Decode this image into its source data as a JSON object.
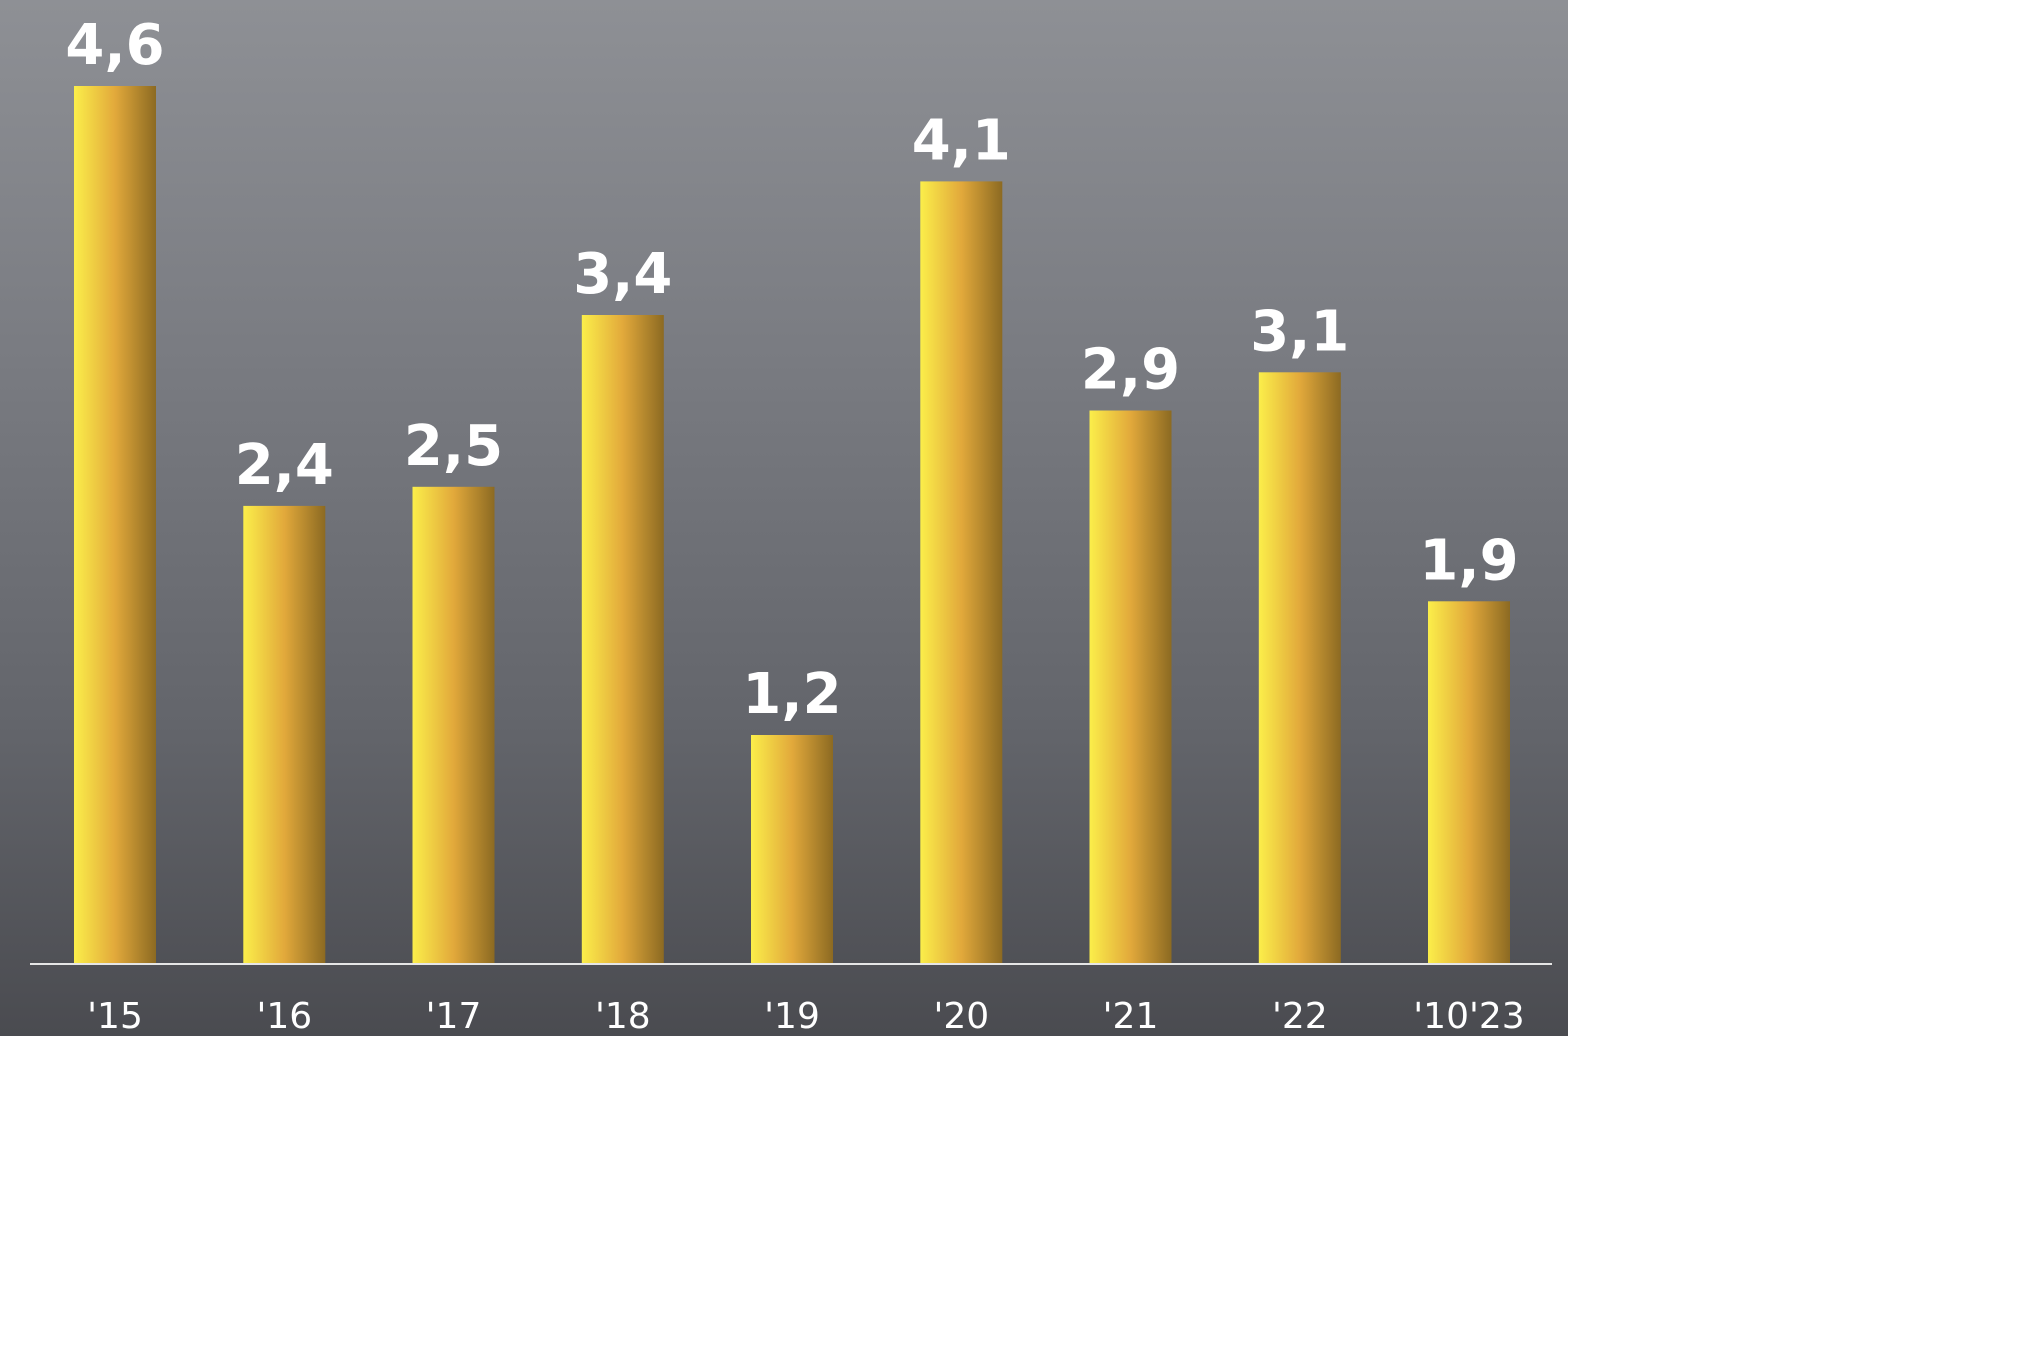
{
  "chart_data": {
    "type": "bar",
    "categories": [
      "'15",
      "'16",
      "'17",
      "'18",
      "'19",
      "'20",
      "'21",
      "'22",
      "'10'23"
    ],
    "values": [
      4.6,
      2.4,
      2.5,
      3.4,
      1.2,
      4.1,
      2.9,
      3.1,
      1.9
    ],
    "value_labels": [
      "4,6",
      "2,4",
      "2,5",
      "3,4",
      "1,2",
      "4,1",
      "2,9",
      "3,1",
      "1,9"
    ],
    "ylim": [
      0,
      4.6
    ],
    "grid": false,
    "legend": "none",
    "colors": {
      "bar_light": "#fbee4a",
      "bar_mid": "#e2a93b",
      "bar_dark": "#8c6a22",
      "text": "#ffffff",
      "baseline": "#e6e6e6"
    }
  }
}
